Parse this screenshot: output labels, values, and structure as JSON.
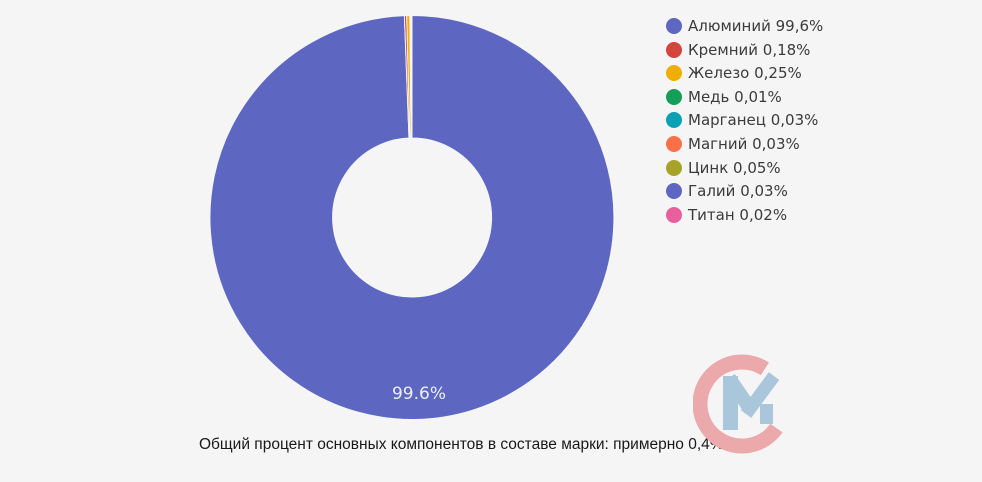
{
  "page": {
    "background": "#f5f5f6"
  },
  "chart_data": {
    "type": "pie",
    "subtype": "donut",
    "legend_position": "right",
    "start": "top-clockwise",
    "slice_border_color": "#f5f5f6",
    "slices": [
      {
        "label": "Алюминий",
        "display": "99,6%",
        "value": 99.6,
        "color": "#5d67c1"
      },
      {
        "label": "Кремний",
        "display": "0,18%",
        "value": 0.18,
        "color": "#d3453c"
      },
      {
        "label": "Железо",
        "display": "0,25%",
        "value": 0.25,
        "color": "#efae02"
      },
      {
        "label": "Медь",
        "display": "0,01%",
        "value": 0.01,
        "color": "#149e58"
      },
      {
        "label": "Марганец",
        "display": "0,03%",
        "value": 0.03,
        "color": "#0ba1b2"
      },
      {
        "label": "Магний",
        "display": "0,03%",
        "value": 0.03,
        "color": "#fb7048"
      },
      {
        "label": "Цинк",
        "display": "0,05%",
        "value": 0.05,
        "color": "#a6a428"
      },
      {
        "label": "Галий",
        "display": "0,03%",
        "value": 0.03,
        "color": "#5d67c1"
      },
      {
        "label": "Титан",
        "display": "0,02%",
        "value": 0.02,
        "color": "#e95f9e"
      }
    ],
    "slice_label": {
      "text": "99.6%",
      "slice": "Алюминий"
    },
    "caption": "Общий процент основных компонентов в составе марки: примерно 0,4%"
  },
  "logo": {
    "name": "cm-watermark",
    "c_color": "#eba9ab",
    "m_color": "#a9c6da"
  }
}
